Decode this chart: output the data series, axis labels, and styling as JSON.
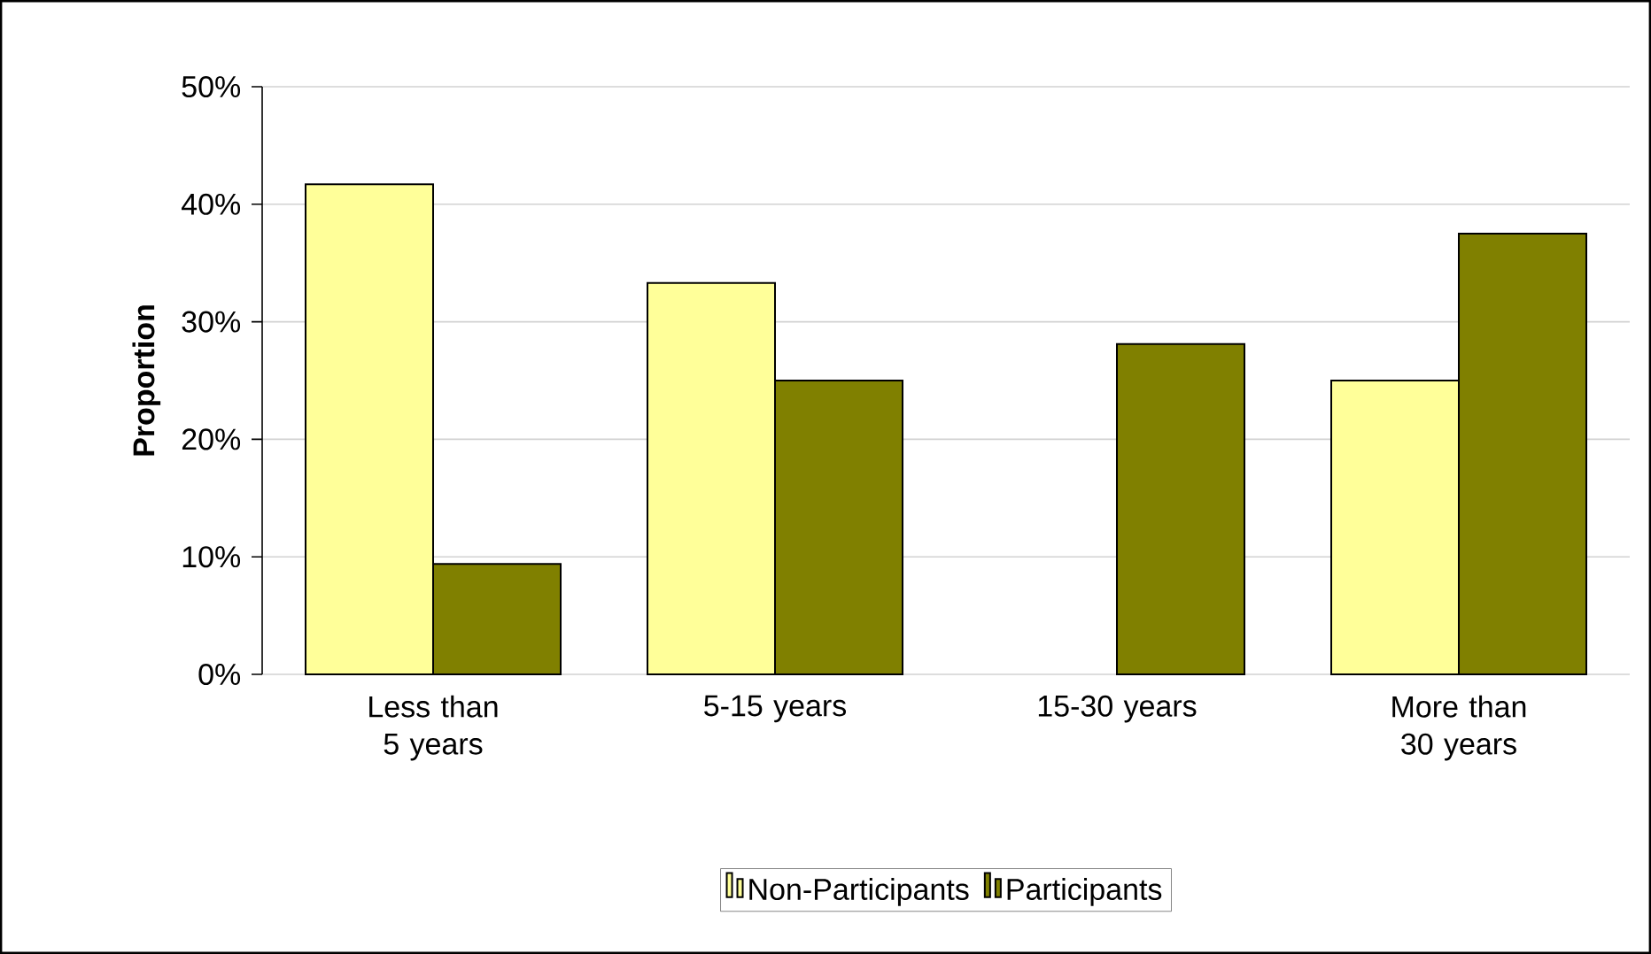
{
  "chart_data": {
    "type": "bar",
    "ylabel": "Proportion",
    "categories": [
      "Less than 5 years",
      "5-15 years",
      "15-30 years",
      "More than 30 years"
    ],
    "series": [
      {
        "name": "Non-Participants",
        "color": "#ffff99",
        "values": [
          41.7,
          33.3,
          null,
          25
        ]
      },
      {
        "name": "Participants",
        "color": "#808000",
        "values": [
          9.4,
          25,
          28.1,
          37.5
        ]
      }
    ],
    "ylim": [
      0,
      50
    ],
    "yticks": [
      {
        "value": 0,
        "label": "0%"
      },
      {
        "value": 10,
        "label": "10%"
      },
      {
        "value": 20,
        "label": "20%"
      },
      {
        "value": 30,
        "label": "30%"
      },
      {
        "value": 40,
        "label": "40%"
      },
      {
        "value": 50,
        "label": "50%"
      }
    ],
    "grid": "y",
    "legend": "bottom"
  }
}
